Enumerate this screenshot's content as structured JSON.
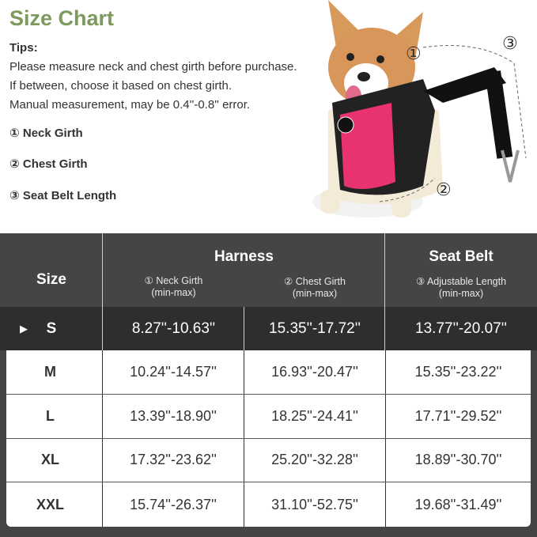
{
  "title": "Size Chart",
  "tips": {
    "heading": "Tips:",
    "lines": [
      "Please measure neck and chest girth before purchase.",
      "If between, choose it based on chest girth.",
      "Manual measurement, may be 0.4''-0.8'' error."
    ]
  },
  "legend": [
    "① Neck Girth",
    "② Chest Girth",
    "③ Seat Belt Length"
  ],
  "photo_markers": [
    "①",
    "②",
    "③"
  ],
  "colors": {
    "title": "#7d9a5c",
    "harness": "#e8336e",
    "panel": "#454545",
    "selected_row": "#2e2e2e"
  },
  "table": {
    "headers": {
      "size": "Size",
      "harness": "Harness",
      "seat_belt": "Seat Belt",
      "neck": "① Neck Girth",
      "chest": "② Chest Girth",
      "length": "③ Adjustable Length",
      "range": "(min-max)"
    },
    "selected_marker_icon": "play-triangle-icon",
    "rows": [
      {
        "size": "S",
        "neck": "8.27''-10.63''",
        "chest": "15.35''-17.72''",
        "belt": "13.77''-20.07''"
      },
      {
        "size": "M",
        "neck": "10.24''-14.57''",
        "chest": "16.93''-20.47''",
        "belt": "15.35''-23.22''"
      },
      {
        "size": "L",
        "neck": "13.39''-18.90''",
        "chest": "18.25''-24.41''",
        "belt": "17.71''-29.52''"
      },
      {
        "size": "XL",
        "neck": "17.32''-23.62''",
        "chest": "25.20''-32.28''",
        "belt": "18.89''-30.70''"
      },
      {
        "size": "XXL",
        "neck": "15.74''-26.37''",
        "chest": "31.10''-52.75''",
        "belt": "19.68''-31.49''"
      }
    ]
  }
}
